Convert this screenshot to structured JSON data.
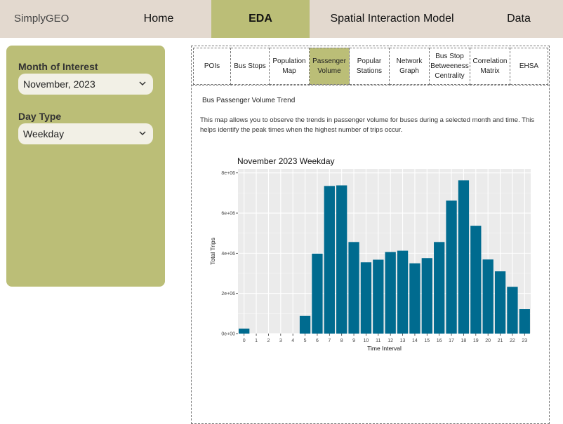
{
  "brand": "SimplyGEO",
  "nav": [
    {
      "label": "Home",
      "active": false
    },
    {
      "label": "EDA",
      "active": true
    },
    {
      "label": "Spatial Interaction Model",
      "active": false
    },
    {
      "label": "Data",
      "active": false
    }
  ],
  "sidebar": {
    "month_label": "Month of Interest",
    "month_value": "November, 2023",
    "daytype_label": "Day Type",
    "daytype_value": "Weekday"
  },
  "tabs": [
    {
      "label": "POIs",
      "active": false
    },
    {
      "label": "Bus Stops",
      "active": false
    },
    {
      "label": "Population Map",
      "active": false
    },
    {
      "label": "Passenger Volume",
      "active": true
    },
    {
      "label": "Popular Stations",
      "active": false
    },
    {
      "label": "Network Graph",
      "active": false
    },
    {
      "label": "Bus Stop Betweeness Centrality",
      "active": false
    },
    {
      "label": "Correlation Matrix",
      "active": false
    },
    {
      "label": "EHSA",
      "active": false
    }
  ],
  "section": {
    "title": "Bus Passenger Volume Trend",
    "description": "This map allows you to observe the trends in passenger volume for buses during a selected month and time. This helps identify the peak times when the highest number of trips occur."
  },
  "chart_data": {
    "type": "bar",
    "title": "November 2023 Weekday",
    "xlabel": "Time Interval",
    "ylabel": "Total Trips",
    "categories": [
      "0",
      "1",
      "2",
      "3",
      "4",
      "5",
      "6",
      "7",
      "8",
      "9",
      "10",
      "11",
      "12",
      "13",
      "14",
      "15",
      "16",
      "17",
      "18",
      "19",
      "20",
      "21",
      "22",
      "23"
    ],
    "values": [
      250000,
      0,
      0,
      0,
      0,
      880000,
      3980000,
      7350000,
      7380000,
      4560000,
      3550000,
      3680000,
      4060000,
      4130000,
      3500000,
      3760000,
      4560000,
      6620000,
      7630000,
      5370000,
      3690000,
      3100000,
      2330000,
      1220000
    ],
    "ylim": [
      0,
      8200000
    ],
    "yticks": [
      0,
      2000000,
      4000000,
      6000000,
      8000000
    ],
    "ytick_labels": [
      "0e+00",
      "2e+06",
      "4e+06",
      "6e+06",
      "8e+06"
    ],
    "bar_color": "#006b8f",
    "panel_color": "#ebebeb",
    "grid": true
  }
}
